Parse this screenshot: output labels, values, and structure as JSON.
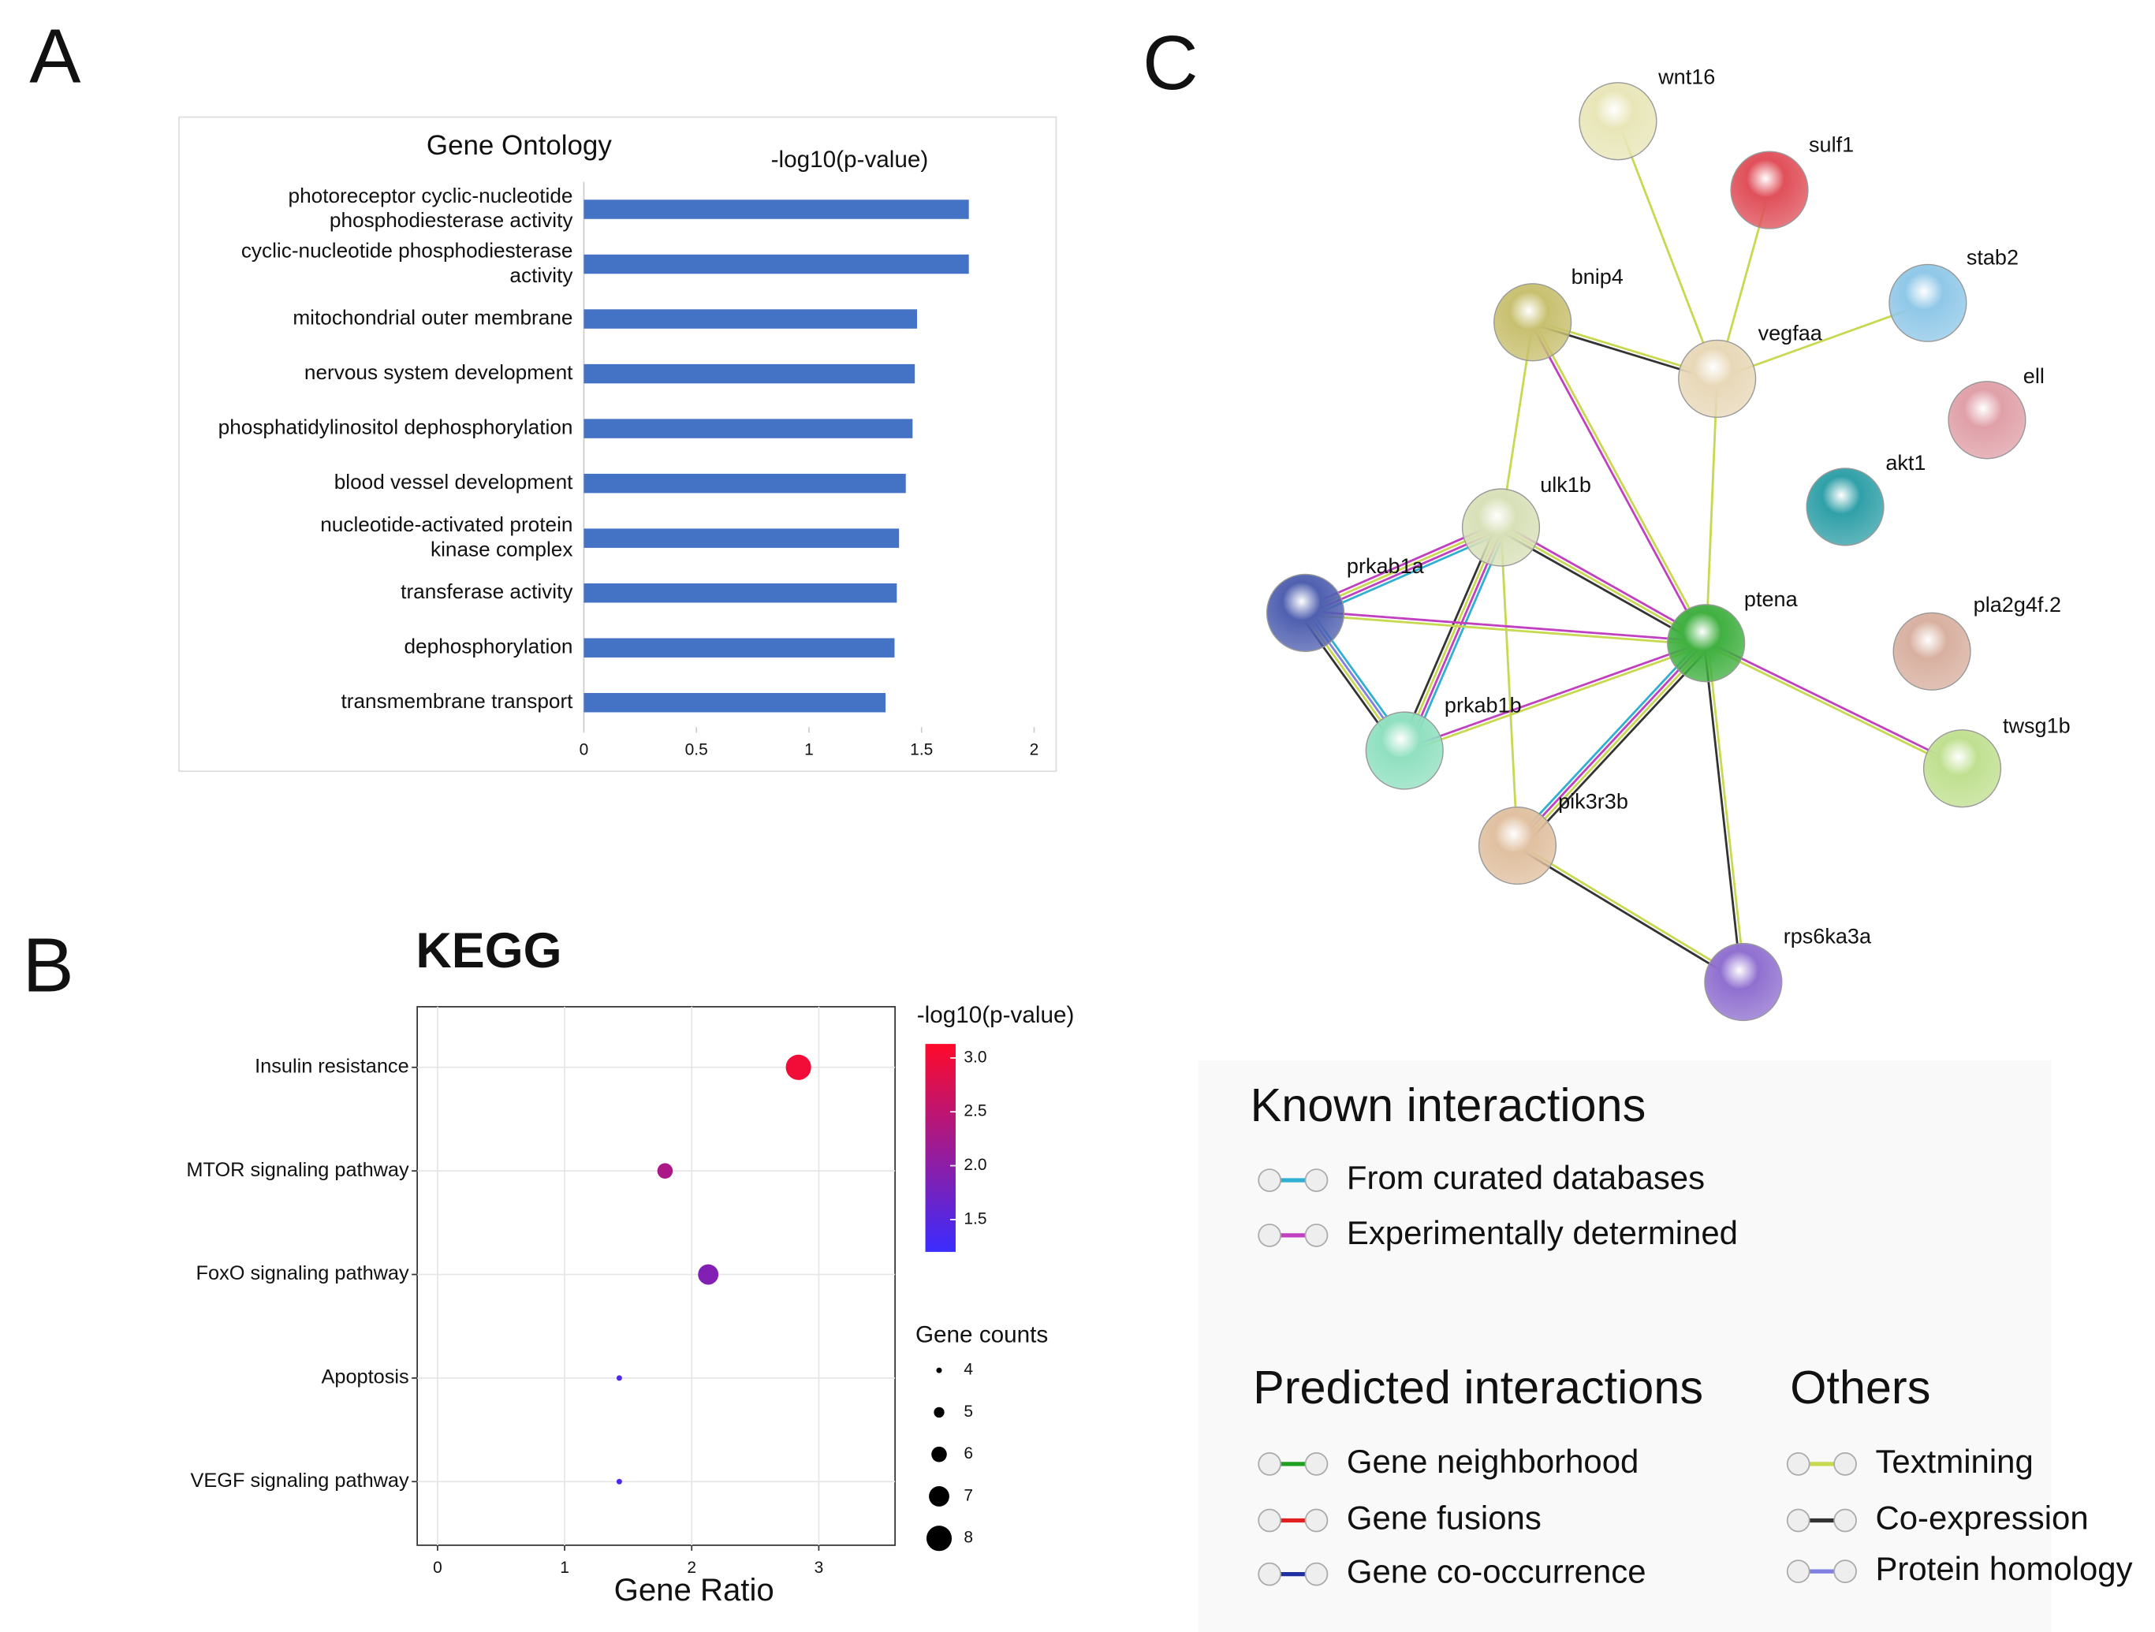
{
  "panel_labels": [
    "A",
    "B",
    "C"
  ],
  "chart_data": [
    {
      "type": "bar",
      "orientation": "horizontal",
      "title": "Gene Ontology",
      "x_label": "-log10(p-value)",
      "categories": [
        "photoreceptor cyclic-nucleotide\nphosphodiesterase activity",
        "cyclic-nucleotide phosphodiesterase\nactivity",
        "mitochondrial outer membrane",
        "nervous system development",
        "phosphatidylinositol dephosphorylation",
        "blood vessel development",
        "nucleotide-activated protein\nkinase complex",
        "transferase activity",
        "dephosphorylation",
        "transmembrane transport"
      ],
      "values": [
        1.71,
        1.71,
        1.48,
        1.47,
        1.46,
        1.43,
        1.4,
        1.39,
        1.38,
        1.34
      ],
      "color": "#4472c4",
      "xlim": [
        0,
        2
      ],
      "xticks": [
        0,
        0.5,
        1,
        1.5,
        2
      ],
      "grid": false
    },
    {
      "type": "bubble",
      "title": "KEGG",
      "x_label": "Gene Ratio",
      "categories": [
        "Insulin resistance",
        "MTOR signaling pathway",
        "FoxO signaling pathway",
        "Apoptosis",
        "VEGF signaling pathway"
      ],
      "x": [
        2.84,
        1.79,
        2.13,
        1.43,
        1.43
      ],
      "sizes": [
        8,
        6,
        7,
        4,
        4
      ],
      "color_values": [
        3.0,
        2.3,
        1.9,
        1.4,
        1.4
      ],
      "xlim": [
        -0.16,
        3.6
      ],
      "xticks": [
        0,
        1,
        2,
        3
      ],
      "grid": true,
      "color_label": "-log10(p-value)",
      "color_lim": [
        1.2,
        3.13
      ],
      "color_ticks": [
        {
          "value": 3,
          "label": "3.0"
        },
        2.5,
        {
          "value": 2,
          "label": "2.0"
        },
        1.5
      ],
      "colors": [
        "#3a2cff",
        "#ff0a2a"
      ],
      "size_label": "Gene counts",
      "size_ticks": [
        4,
        5,
        6,
        7,
        8
      ]
    }
  ],
  "network": {
    "nodes": [
      {
        "label": "wnt16"
      },
      {
        "label": "sulf1"
      },
      {
        "label": "bnip4"
      },
      {
        "label": "vegfaa"
      },
      {
        "label": "stab2"
      },
      {
        "label": "ell"
      },
      {
        "label": "akt1"
      },
      {
        "label": "ulk1b"
      },
      {
        "label": "prkab1a"
      },
      {
        "label": "ptena"
      },
      {
        "label": "pla2g4f.2"
      },
      {
        "label": "twsg1b"
      },
      {
        "label": "prkab1b"
      },
      {
        "label": "pik3r3b"
      },
      {
        "label": "rps6ka3a"
      }
    ],
    "legend": {
      "known": {
        "title": "Known interactions",
        "items": [
          "From curated databases",
          "Experimentally determined"
        ]
      },
      "predicted": {
        "title": "Predicted interactions",
        "items": [
          "Gene neighborhood",
          "Gene fusions",
          "Gene co-occurrence"
        ]
      },
      "others": {
        "title": "Others",
        "items": [
          "Textmining",
          "Co-expression",
          "Protein homology"
        ]
      }
    }
  }
}
